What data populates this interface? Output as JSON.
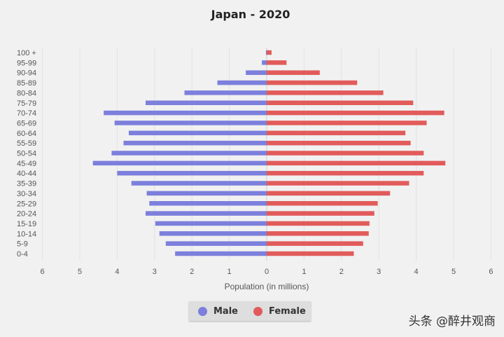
{
  "chart_data": {
    "type": "bar",
    "title": "Japan - 2020",
    "xlabel": "Population (in millions)",
    "ylabel": "",
    "xlim": [
      -6,
      6
    ],
    "x_ticks": [
      "6",
      "5",
      "4",
      "3",
      "2",
      "1",
      "0",
      "1",
      "2",
      "3",
      "4",
      "5",
      "6"
    ],
    "legend_position": "bottom-center",
    "grid": true,
    "categories": [
      "100 +",
      "95-99",
      "90-94",
      "85-89",
      "80-84",
      "75-79",
      "70-74",
      "65-69",
      "60-64",
      "55-59",
      "50-54",
      "45-49",
      "40-44",
      "35-39",
      "30-34",
      "25-29",
      "20-24",
      "15-19",
      "10-14",
      "5-9",
      "0-4"
    ],
    "series": [
      {
        "name": "Male",
        "color": "#7c7fdc",
        "values": [
          0.02,
          0.13,
          0.56,
          1.32,
          2.2,
          3.24,
          4.36,
          4.07,
          3.69,
          3.83,
          4.15,
          4.65,
          4.0,
          3.62,
          3.21,
          3.14,
          3.24,
          2.98,
          2.87,
          2.7,
          2.45
        ]
      },
      {
        "name": "Female",
        "color": "#e25b5b",
        "values": [
          0.13,
          0.53,
          1.42,
          2.42,
          3.12,
          3.92,
          4.75,
          4.28,
          3.71,
          3.85,
          4.2,
          4.78,
          4.2,
          3.81,
          3.3,
          2.97,
          2.88,
          2.75,
          2.73,
          2.58,
          2.33
        ]
      }
    ]
  },
  "legend": {
    "male_label": "Male",
    "female_label": "Female"
  },
  "watermark": "头条 @醉井观商"
}
